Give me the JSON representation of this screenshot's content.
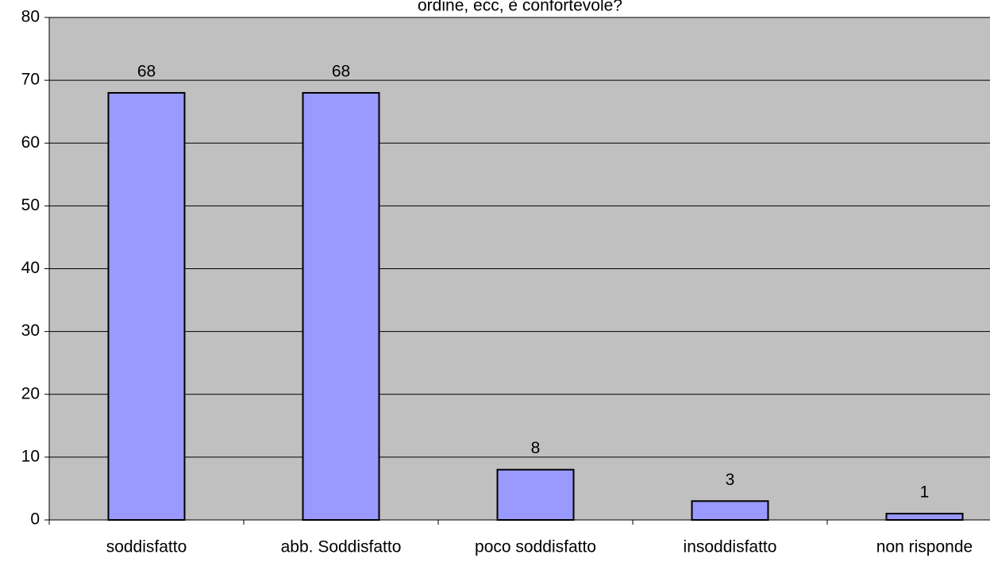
{
  "chart_data": {
    "type": "bar",
    "title": "ordine, ecc, è confortevole?",
    "categories": [
      "soddisfatto",
      "abb. Soddisfatto",
      "poco soddisfatto",
      "insoddisfatto",
      "non risponde"
    ],
    "values": [
      68,
      68,
      8,
      3,
      1
    ],
    "color": "#9999ff",
    "ylim": [
      0,
      80
    ],
    "yticks": [
      0,
      10,
      20,
      30,
      40,
      50,
      60,
      70,
      80
    ],
    "grid": true
  }
}
